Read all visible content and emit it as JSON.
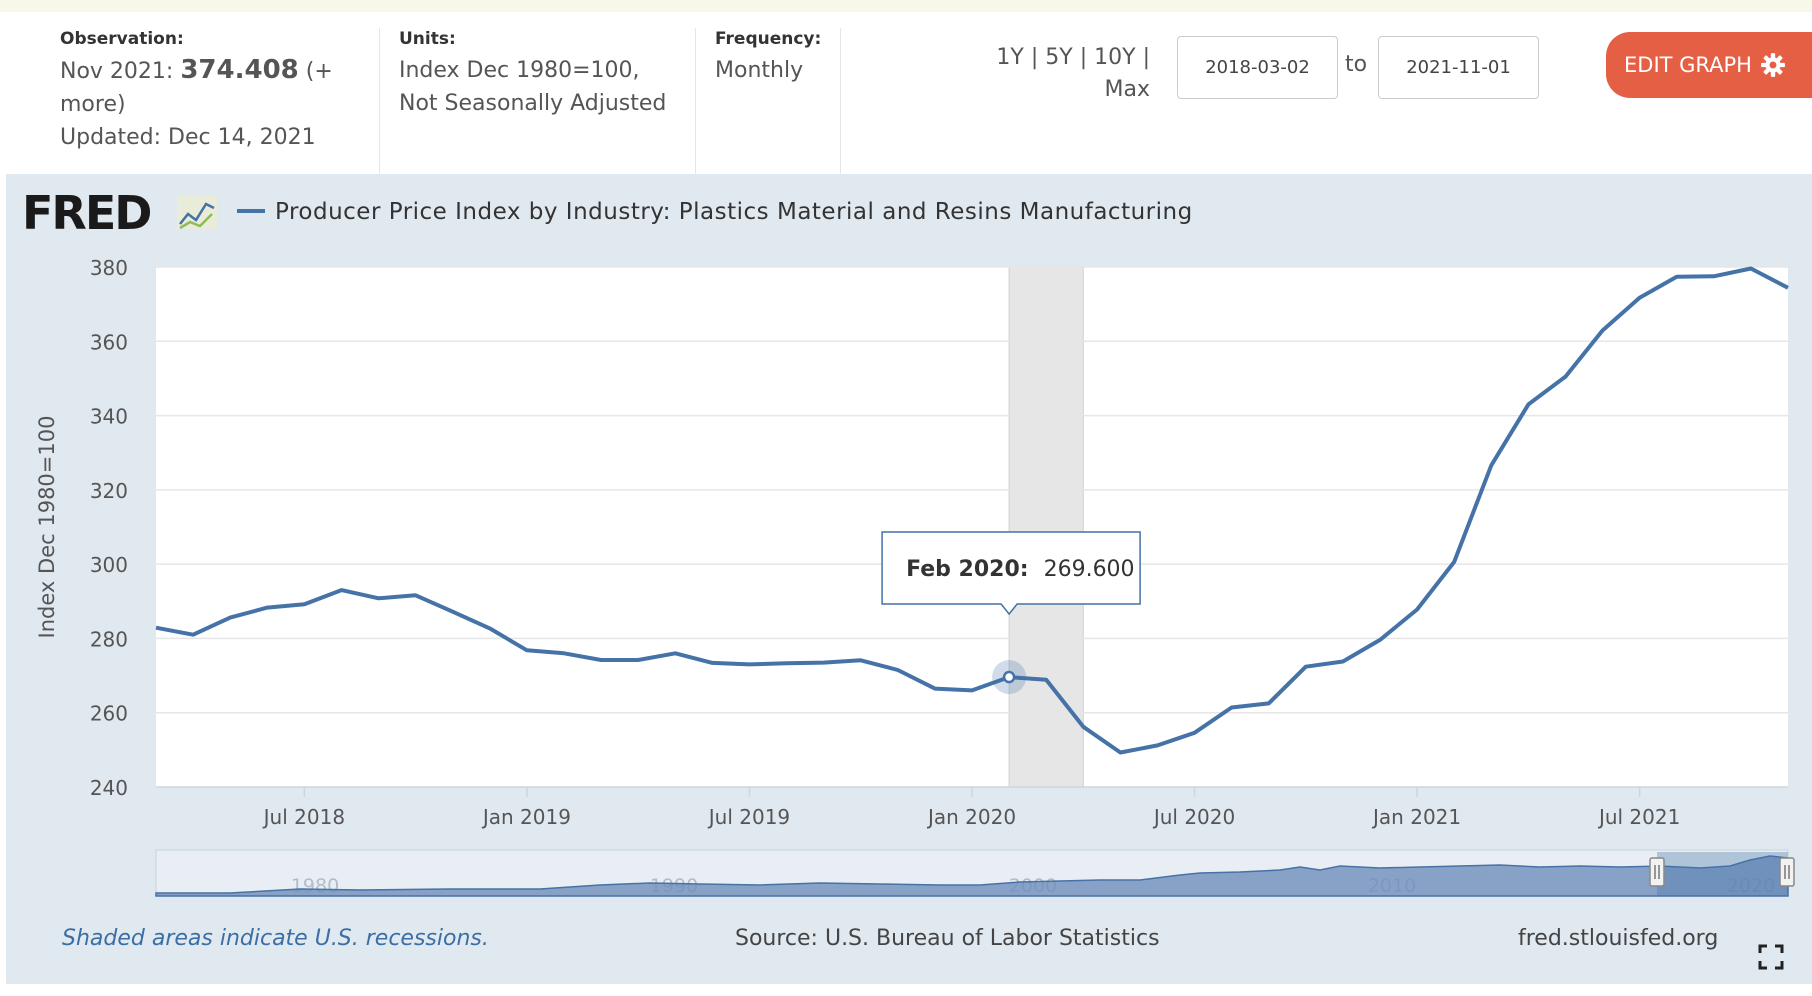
{
  "header": {
    "observation_label": "Observation:",
    "observation_date": "Nov 2021:",
    "observation_value": "374.408",
    "observation_more": "(+ more)",
    "updated": "Updated: Dec 14, 2021",
    "units_label": "Units:",
    "units_line1": "Index Dec 1980=100,",
    "units_line2": "Not Seasonally Adjusted",
    "frequency_label": "Frequency:",
    "frequency_value": "Monthly",
    "range_1y": "1Y",
    "range_5y": "5Y",
    "range_10y": "10Y",
    "range_max": "Max",
    "range_sep": "|",
    "start_date": "2018-03-02",
    "to_label": "to",
    "end_date": "2021-11-01",
    "edit_button": "EDIT GRAPH"
  },
  "logo": "FRED",
  "colors": {
    "series": "#4572a7",
    "edit_button": "#e55f45",
    "panel": "#e1e9f0",
    "recession": "#e6e6e6",
    "footer_link": "#3b6ea5"
  },
  "chart_data": {
    "type": "line",
    "title": "Producer Price Index by Industry: Plastics Material and Resins Manufacturing",
    "ylabel": "Index Dec 1980=100",
    "xlabel": "",
    "ylim": [
      240,
      380
    ],
    "yticks": [
      240,
      260,
      280,
      300,
      320,
      340,
      360,
      380
    ],
    "xlim": [
      "2018-03",
      "2021-11"
    ],
    "xticks": [
      {
        "date": "2018-07",
        "label": "Jul 2018"
      },
      {
        "date": "2019-01",
        "label": "Jan 2019"
      },
      {
        "date": "2019-07",
        "label": "Jul 2019"
      },
      {
        "date": "2020-01",
        "label": "Jan 2020"
      },
      {
        "date": "2020-07",
        "label": "Jul 2020"
      },
      {
        "date": "2021-01",
        "label": "Jan 2021"
      },
      {
        "date": "2021-07",
        "label": "Jul 2021"
      }
    ],
    "recessions": [
      {
        "start": "2020-02",
        "end": "2020-04"
      }
    ],
    "tooltip": {
      "date": "2020-02",
      "label": "Feb 2020:",
      "value": "269.600"
    },
    "grid": true,
    "legend": "top-left",
    "series": [
      {
        "name": "Producer Price Index by Industry: Plastics Material and Resins Manufacturing",
        "x": [
          "2018-03",
          "2018-04",
          "2018-05",
          "2018-06",
          "2018-07",
          "2018-08",
          "2018-09",
          "2018-10",
          "2018-11",
          "2018-12",
          "2019-01",
          "2019-02",
          "2019-03",
          "2019-04",
          "2019-05",
          "2019-06",
          "2019-07",
          "2019-08",
          "2019-09",
          "2019-10",
          "2019-11",
          "2019-12",
          "2020-01",
          "2020-02",
          "2020-03",
          "2020-04",
          "2020-05",
          "2020-06",
          "2020-07",
          "2020-08",
          "2020-09",
          "2020-10",
          "2020-11",
          "2020-12",
          "2021-01",
          "2021-02",
          "2021-03",
          "2021-04",
          "2021-05",
          "2021-06",
          "2021-07",
          "2021-08",
          "2021-09",
          "2021-10",
          "2021-11"
        ],
        "values": [
          282.9,
          281.0,
          285.6,
          288.3,
          289.2,
          293.0,
          290.8,
          291.6,
          287.2,
          282.7,
          276.8,
          276.0,
          274.2,
          274.2,
          276.0,
          273.4,
          273.0,
          273.3,
          273.5,
          274.1,
          271.5,
          266.5,
          266.0,
          269.6,
          268.9,
          256.2,
          249.3,
          251.2,
          254.6,
          261.4,
          262.5,
          272.4,
          273.8,
          279.6,
          287.8,
          300.6,
          326.6,
          343.0,
          350.5,
          362.9,
          371.7,
          377.4,
          377.5,
          379.6,
          374.408
        ]
      }
    ],
    "navigator": {
      "labels": [
        "1980",
        "1990",
        "2000",
        "2010",
        "2020"
      ]
    }
  },
  "footer": {
    "note": "Shaded areas indicate U.S. recessions.",
    "source": "Source: U.S. Bureau of Labor Statistics",
    "site": "fred.stlouisfed.org"
  }
}
